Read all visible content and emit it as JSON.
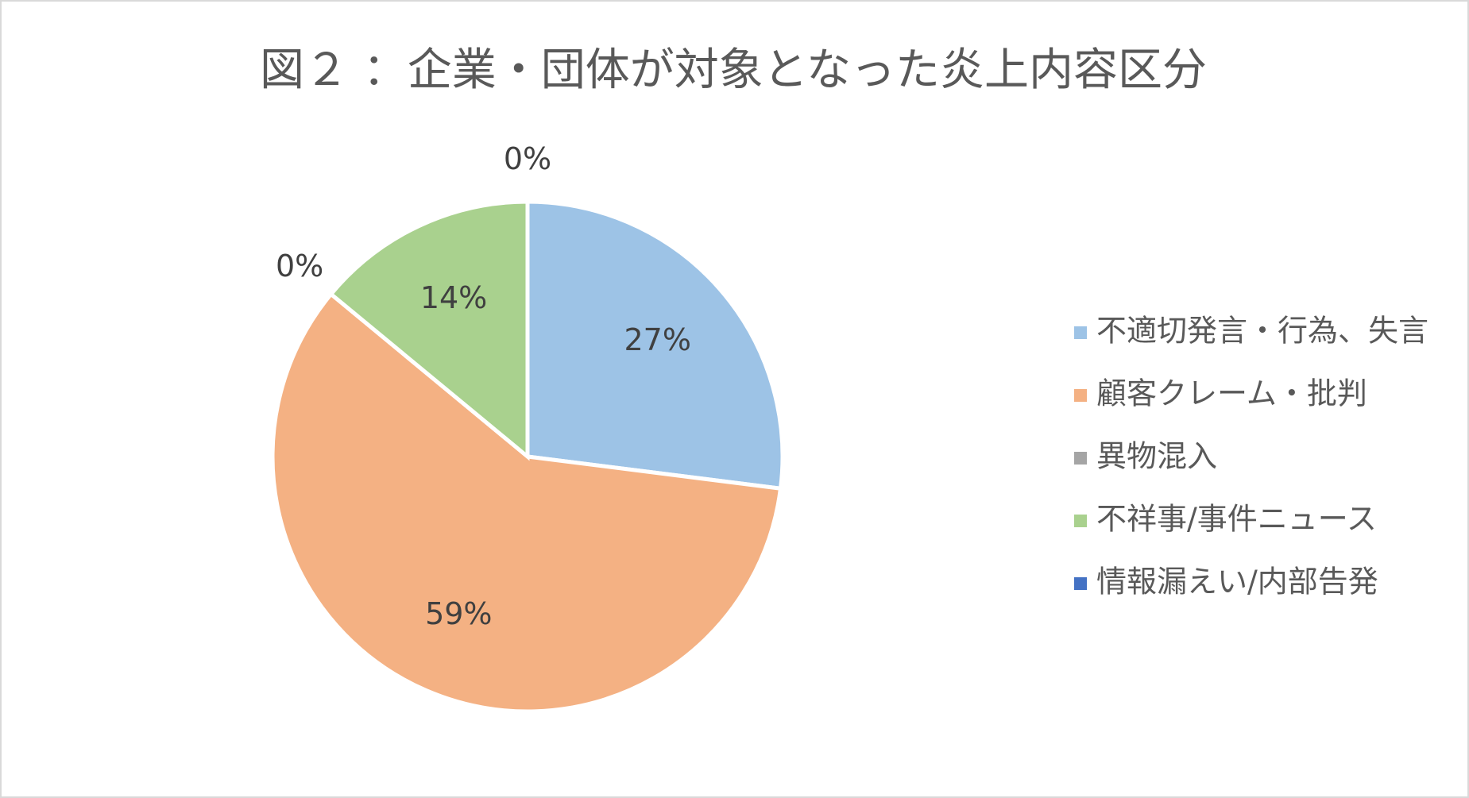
{
  "chart_data": {
    "type": "pie",
    "title": "図２ ：企業・団体が対象となった炎上内容区分",
    "categories": [
      "不適切発言・行為、失言",
      "顧客クレーム・批判",
      "異物混入",
      "不祥事/事件ニュース",
      "情報漏えい/内部告発"
    ],
    "values": [
      27,
      59,
      0,
      14,
      0
    ],
    "value_labels": [
      "27%",
      "59%",
      "0%",
      "14%",
      "0%"
    ],
    "colors": [
      "#9dc3e6",
      "#f4b183",
      "#a5a5a5",
      "#a9d18e",
      "#4472c4"
    ],
    "legend": "right"
  }
}
